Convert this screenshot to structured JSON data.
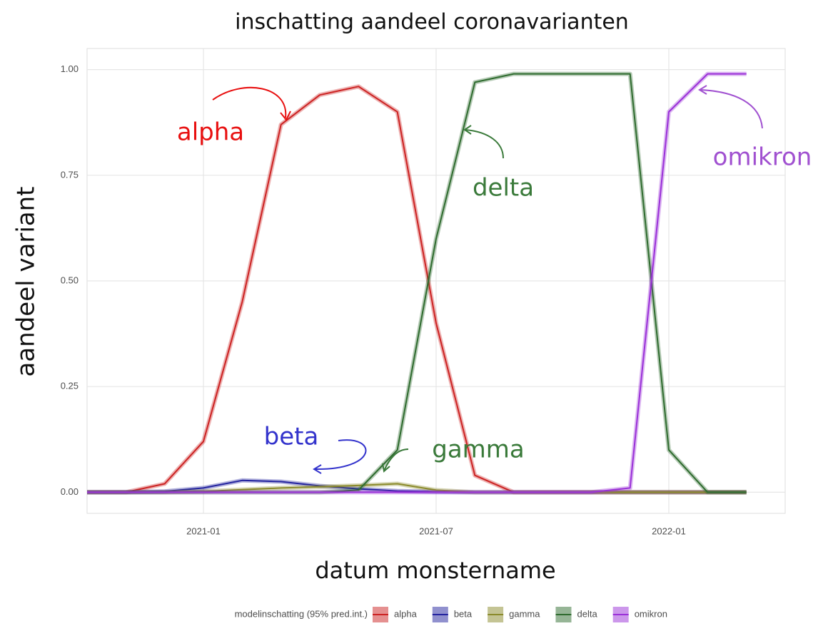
{
  "chart_data": {
    "type": "line",
    "title": "inschatting aandeel coronavarianten",
    "x_label": "datum monstername",
    "y_label": "aandeel variant",
    "legend_title": "modelinschatting (95% pred.int.)",
    "x": [
      "2020-10",
      "2020-11",
      "2020-12",
      "2021-01",
      "2021-02",
      "2021-03",
      "2021-04",
      "2021-05",
      "2021-06",
      "2021-07",
      "2021-08",
      "2021-09",
      "2021-10",
      "2021-11",
      "2021-12",
      "2022-01",
      "2022-02",
      "2022-03"
    ],
    "series": [
      {
        "name": "alpha",
        "color": "#cc2222",
        "values": [
          0,
          0,
          0.02,
          0.12,
          0.45,
          0.87,
          0.94,
          0.96,
          0.9,
          0.4,
          0.04,
          0,
          0,
          0,
          0,
          0,
          0,
          0
        ]
      },
      {
        "name": "beta",
        "color": "#22229e",
        "values": [
          0,
          0,
          0.002,
          0.01,
          0.028,
          0.025,
          0.015,
          0.008,
          0.003,
          0.001,
          0,
          0,
          0,
          0,
          0,
          0,
          0,
          0
        ]
      },
      {
        "name": "gamma",
        "color": "#8a8a2a",
        "values": [
          0,
          0,
          0,
          0.002,
          0.006,
          0.01,
          0.013,
          0.016,
          0.02,
          0.005,
          0,
          0,
          0,
          0,
          0,
          0,
          0,
          0
        ]
      },
      {
        "name": "delta",
        "color": "#2e6b2e",
        "values": [
          0,
          0,
          0,
          0,
          0,
          0,
          0,
          0.005,
          0.1,
          0.6,
          0.97,
          0.99,
          0.99,
          0.99,
          0.99,
          0.1,
          0,
          0
        ]
      },
      {
        "name": "omikron",
        "color": "#9a30d8",
        "values": [
          0,
          0,
          0,
          0,
          0,
          0,
          0,
          0,
          0,
          0,
          0,
          0,
          0,
          0,
          0.01,
          0.9,
          0.99,
          0.99
        ]
      }
    ],
    "xlim": [
      "2020-10",
      "2022-04"
    ],
    "xticks": [
      "2021-01",
      "2021-07",
      "2022-01"
    ],
    "ylim": [
      -0.05,
      1.05
    ],
    "yticks": [
      {
        "value": 0,
        "label": "0.00"
      },
      {
        "value": 0.25,
        "label": "0.25"
      },
      {
        "value": 0.5,
        "label": "0.50"
      },
      {
        "value": 0.75,
        "label": "0.75"
      },
      {
        "value": 1,
        "label": "1.00"
      }
    ],
    "grid": true,
    "annotations": [
      {
        "text": "alpha",
        "color": "#e81010"
      },
      {
        "text": "beta",
        "color": "#3333cc"
      },
      {
        "text": "gamma",
        "color": "#3a7a3a"
      },
      {
        "text": "delta",
        "color": "#3a7a3a"
      },
      {
        "text": "omikron",
        "color": "#a050d0"
      }
    ]
  }
}
